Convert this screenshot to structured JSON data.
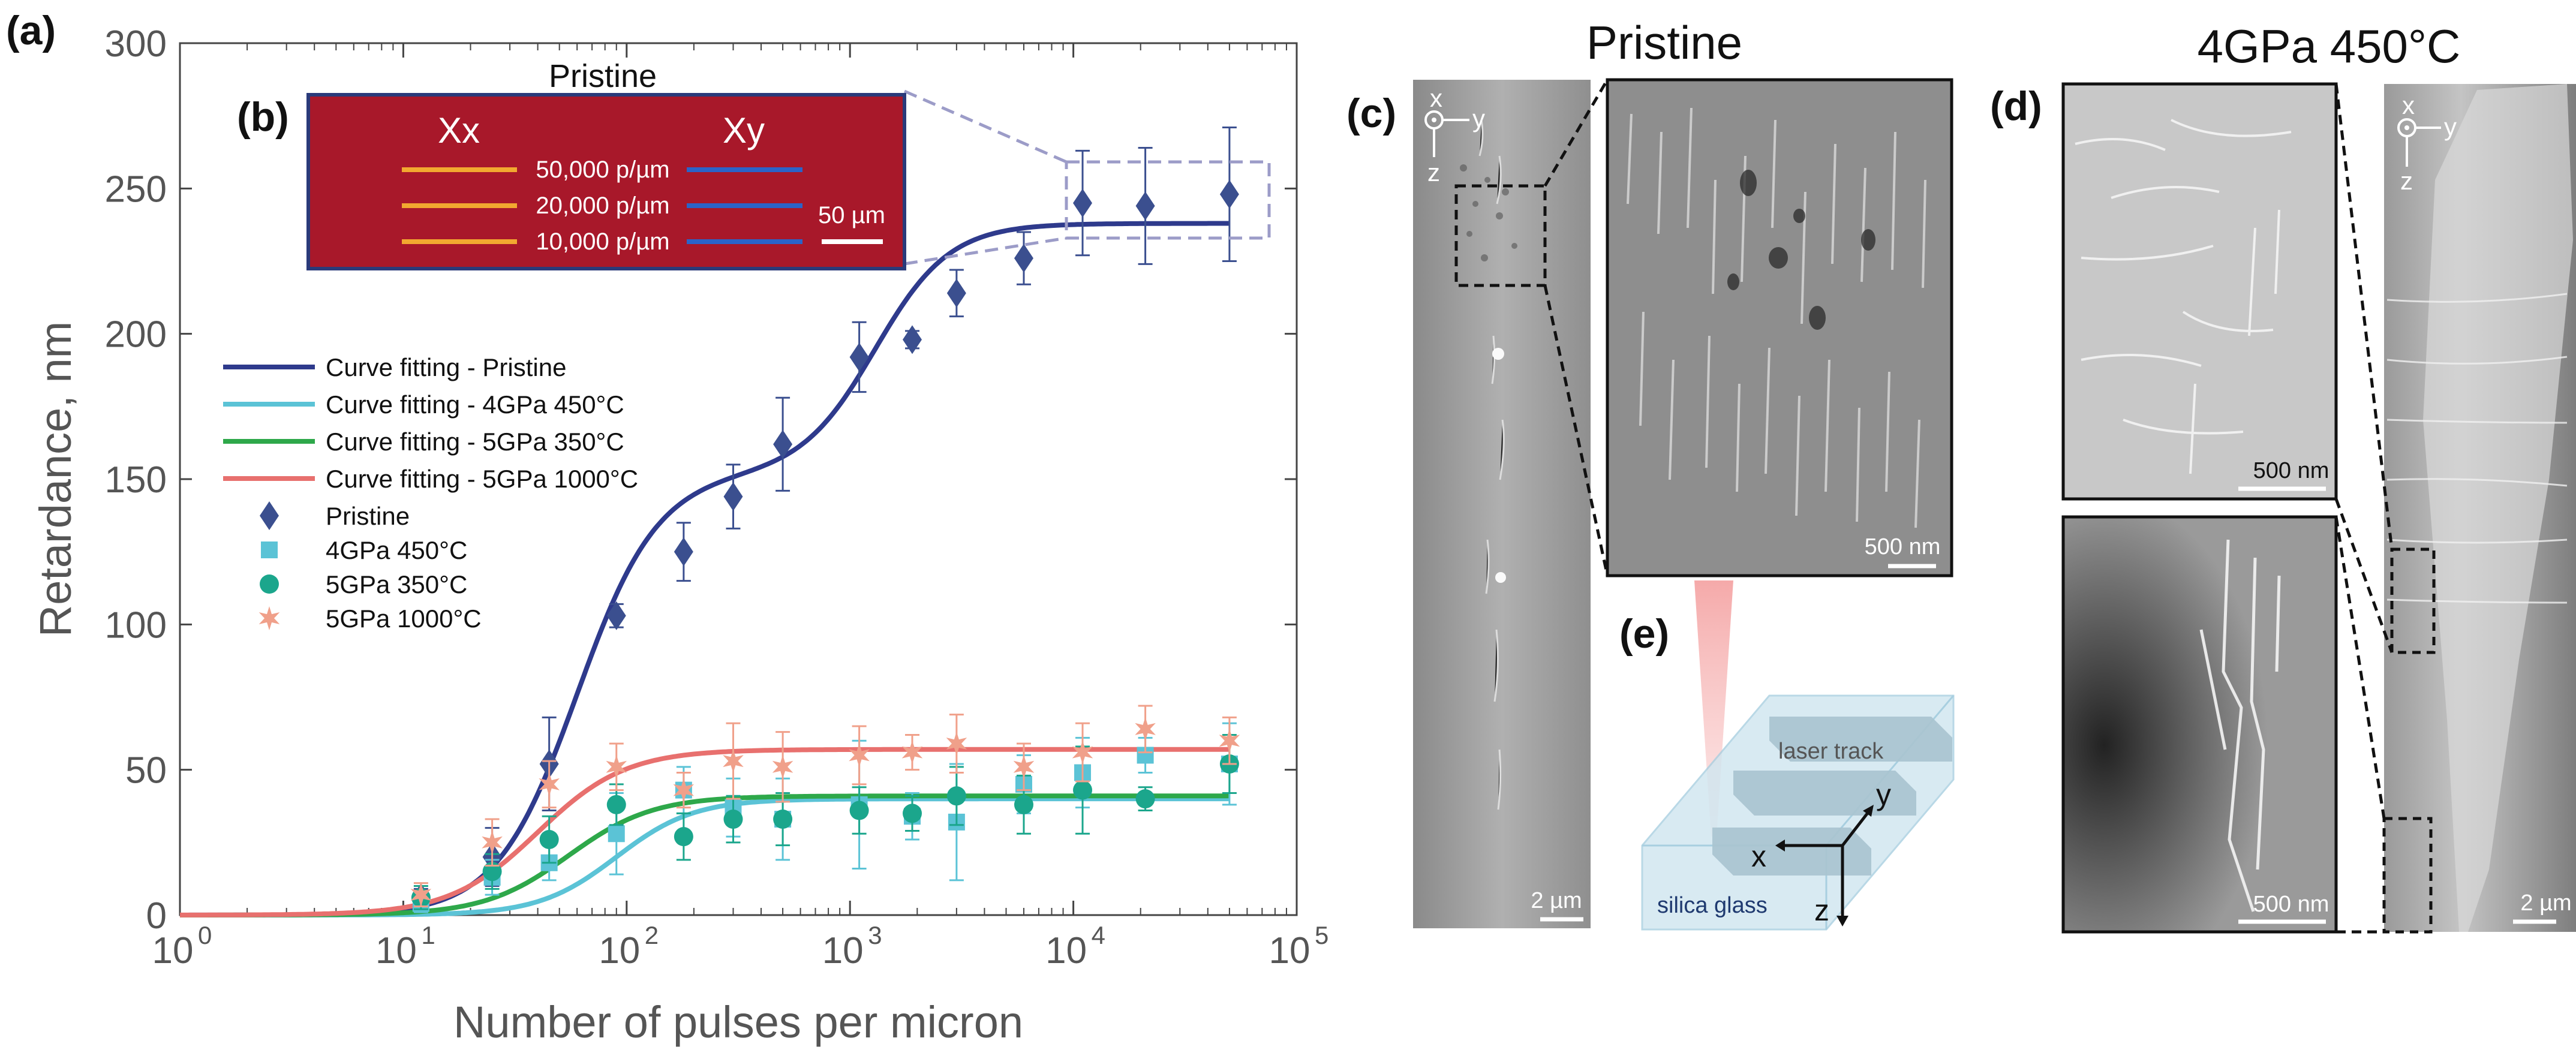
{
  "panels": {
    "a": "(a)",
    "b": "(b)",
    "c": "(c)",
    "d": "(d)",
    "e": "(e)"
  },
  "chart_data": {
    "type": "scatter",
    "title": "",
    "xlabel": "Number of pulses per micron",
    "ylabel": "Retardance, nm",
    "xscale": "log",
    "xlim": [
      1,
      100000
    ],
    "ylim": [
      0,
      300
    ],
    "yticks": [
      "0",
      "50",
      "100",
      "150",
      "200",
      "250",
      "300"
    ],
    "xticks": [
      {
        "base": "10",
        "exp": "0"
      },
      {
        "base": "10",
        "exp": "1"
      },
      {
        "base": "10",
        "exp": "2"
      },
      {
        "base": "10",
        "exp": "3"
      },
      {
        "base": "10",
        "exp": "4"
      },
      {
        "base": "10",
        "exp": "5"
      }
    ],
    "series": [
      {
        "name": "Pristine",
        "marker": "diamond",
        "color": "#3B4F8F",
        "x": [
          12,
          25,
          45,
          90,
          180,
          300,
          500,
          1100,
          1900,
          3000,
          6000,
          11000,
          21000,
          50000
        ],
        "y": [
          6,
          20,
          52,
          103,
          125,
          144,
          162,
          192,
          198,
          214,
          226,
          245,
          244,
          248
        ],
        "err": [
          3,
          10,
          16,
          4,
          10,
          11,
          16,
          12,
          3,
          8,
          9,
          18,
          20,
          23
        ]
      },
      {
        "name": "4GPa 450°C",
        "marker": "square",
        "color": "#5BC3D6",
        "x": [
          12,
          25,
          45,
          90,
          180,
          300,
          500,
          1100,
          1900,
          3000,
          6000,
          11000,
          21000,
          50000
        ],
        "y": [
          4,
          13,
          18,
          28,
          43,
          37,
          33,
          38,
          34,
          32,
          45,
          49,
          55,
          52
        ],
        "err": [
          3,
          6,
          6,
          14,
          8,
          10,
          14,
          22,
          8,
          20,
          10,
          12,
          6,
          14
        ]
      },
      {
        "name": "5GPa 350°C",
        "marker": "circle",
        "color": "#1BA68C",
        "x": [
          12,
          25,
          45,
          90,
          180,
          300,
          500,
          1100,
          1900,
          3000,
          6000,
          11000,
          21000,
          50000
        ],
        "y": [
          6,
          15,
          26,
          38,
          27,
          33,
          33,
          36,
          35,
          41,
          38,
          43,
          40,
          52
        ],
        "err": [
          4,
          6,
          8,
          7,
          8,
          8,
          9,
          8,
          6,
          10,
          10,
          15,
          4,
          10
        ]
      },
      {
        "name": "5GPa 1000°C",
        "marker": "star",
        "color": "#F0A08A",
        "x": [
          12,
          25,
          45,
          90,
          180,
          300,
          500,
          1100,
          1900,
          3000,
          6000,
          11000,
          21000,
          50000
        ],
        "y": [
          7,
          25,
          45,
          51,
          43,
          53,
          51,
          55,
          56,
          59,
          51,
          56,
          64,
          60
        ],
        "err": [
          4,
          8,
          8,
          8,
          6,
          13,
          12,
          10,
          6,
          10,
          8,
          10,
          8,
          8
        ]
      }
    ],
    "fits": [
      {
        "name": "Curve fitting - Pristine",
        "color": "#2E3A8C",
        "plateau": 238,
        "type": "double"
      },
      {
        "name": "Curve fitting - 4GPa 450°C",
        "color": "#5BC3D6",
        "plateau": 40,
        "x0": 90,
        "n": 2.5
      },
      {
        "name": "Curve fitting - 5GPa 350°C",
        "color": "#2EA84A",
        "plateau": 41,
        "x0": 55,
        "n": 2.3
      },
      {
        "name": "Curve fitting - 5GPa 1000°C",
        "color": "#E8706E",
        "plateau": 57,
        "x0": 40,
        "n": 2.2
      }
    ]
  },
  "inset_b": {
    "title": "Pristine",
    "col_xx": "Xx",
    "col_xy": "Xy",
    "rows": [
      "50,000 p/µm",
      "20,000 p/µm",
      "10,000 p/µm"
    ],
    "scale": "50 µm",
    "bg_color": "#A8182A"
  },
  "panel_c": {
    "title": "Pristine",
    "axis_x": "x",
    "axis_y": "y",
    "axis_z": "z",
    "scale_main": "2 µm",
    "scale_zoom": "500 nm"
  },
  "panel_d": {
    "title": "4GPa 450°C",
    "axis_x": "x",
    "axis_y": "y",
    "axis_z": "z",
    "scale_top": "500 nm",
    "scale_bottom": "500 nm",
    "scale_main": "2 µm"
  },
  "panel_e": {
    "track": "laser track",
    "glass": "silica glass",
    "axis_x": "x",
    "axis_y": "y",
    "axis_z": "z"
  }
}
